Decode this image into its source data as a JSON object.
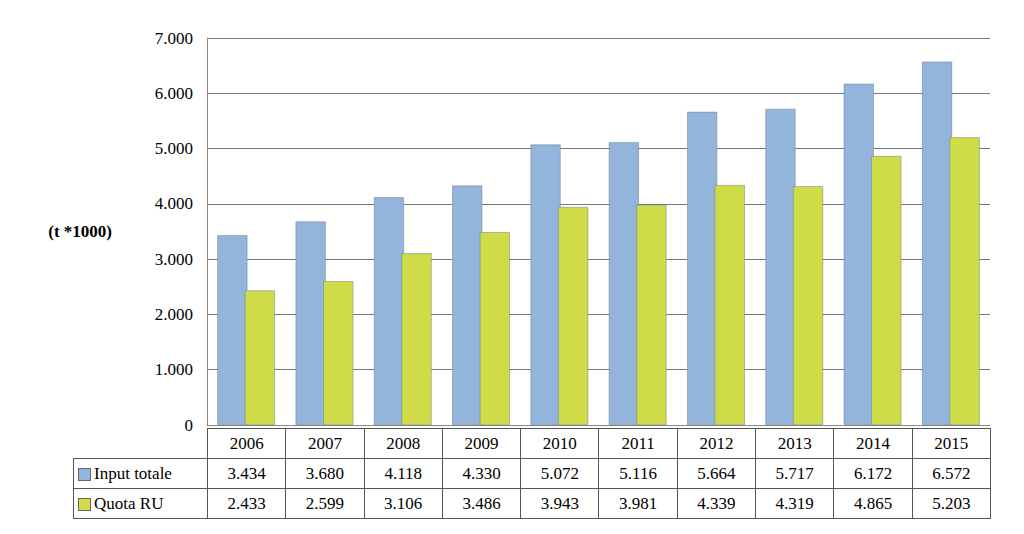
{
  "chart_data": {
    "type": "bar",
    "y_label": "(t *1000)",
    "categories": [
      "2006",
      "2007",
      "2008",
      "2009",
      "2010",
      "2011",
      "2012",
      "2013",
      "2014",
      "2015"
    ],
    "series": [
      {
        "name": "Input totale",
        "color": "#93b5dc",
        "values": [
          3434,
          3680,
          4118,
          4330,
          5072,
          5116,
          5664,
          5717,
          6172,
          6572
        ],
        "value_labels": [
          "3.434",
          "3.680",
          "4.118",
          "4.330",
          "5.072",
          "5.116",
          "5.664",
          "5.717",
          "6.172",
          "6.572"
        ]
      },
      {
        "name": "Quota RU",
        "color": "#cfdc48",
        "values": [
          2433,
          2599,
          3106,
          3486,
          3943,
          3981,
          4339,
          4319,
          4865,
          5203
        ],
        "value_labels": [
          "2.433",
          "2.599",
          "3.106",
          "3.486",
          "3.943",
          "3.981",
          "4.339",
          "4.319",
          "4.865",
          "5.203"
        ]
      }
    ],
    "ylim": [
      0,
      7000
    ],
    "yticks": [
      0,
      {
        "value": 1000,
        "label": "1.000"
      },
      {
        "value": 2000,
        "label": "2.000"
      },
      {
        "value": 3000,
        "label": "3.000"
      },
      {
        "value": 4000,
        "label": "4.000"
      },
      {
        "value": 5000,
        "label": "5.000"
      },
      {
        "value": 6000,
        "label": "6.000"
      },
      {
        "value": 7000,
        "label": "7.000"
      }
    ],
    "grid": true
  }
}
